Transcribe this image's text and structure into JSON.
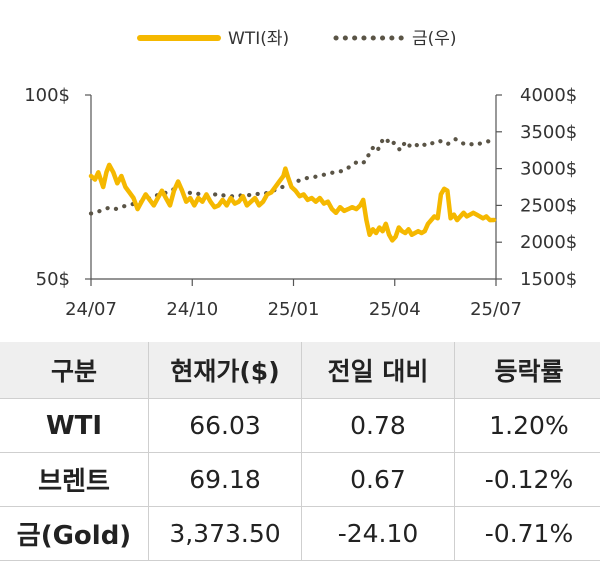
{
  "chart_data": {
    "type": "line",
    "legend_position": "top",
    "x_ticks": [
      "24/07",
      "24/10",
      "25/01",
      "25/04",
      "25/07"
    ],
    "x_range": [
      "2024-07",
      "2025-07"
    ],
    "y_left": {
      "ticks": [
        "100$",
        "50$"
      ],
      "range": [
        50,
        100
      ]
    },
    "y_right": {
      "ticks": [
        "4000$",
        "3500$",
        "3000$",
        "2500$",
        "2000$",
        "1500$"
      ],
      "range": [
        1500,
        4000
      ]
    },
    "series": [
      {
        "name": "WTI(좌)",
        "axis": "left",
        "style": "solid",
        "color": "#F5B800",
        "points": [
          [
            0.0,
            78.0
          ],
          [
            0.01,
            77.0
          ],
          [
            0.018,
            79.0
          ],
          [
            0.03,
            75.0
          ],
          [
            0.038,
            79.0
          ],
          [
            0.045,
            81.0
          ],
          [
            0.055,
            79.0
          ],
          [
            0.065,
            76.0
          ],
          [
            0.075,
            78.0
          ],
          [
            0.085,
            75.0
          ],
          [
            0.095,
            73.5
          ],
          [
            0.105,
            72.0
          ],
          [
            0.115,
            69.0
          ],
          [
            0.125,
            71.0
          ],
          [
            0.135,
            73.0
          ],
          [
            0.145,
            71.5
          ],
          [
            0.155,
            70.0
          ],
          [
            0.165,
            72.0
          ],
          [
            0.175,
            74.0
          ],
          [
            0.185,
            72.0
          ],
          [
            0.195,
            70.0
          ],
          [
            0.205,
            74.0
          ],
          [
            0.215,
            76.5
          ],
          [
            0.225,
            74.0
          ],
          [
            0.235,
            71.0
          ],
          [
            0.245,
            72.0
          ],
          [
            0.255,
            70.0
          ],
          [
            0.265,
            72.0
          ],
          [
            0.275,
            71.0
          ],
          [
            0.285,
            73.0
          ],
          [
            0.295,
            71.0
          ],
          [
            0.305,
            69.5
          ],
          [
            0.315,
            70.0
          ],
          [
            0.325,
            71.5
          ],
          [
            0.335,
            70.0
          ],
          [
            0.345,
            72.0
          ],
          [
            0.355,
            70.5
          ],
          [
            0.365,
            71.0
          ],
          [
            0.375,
            72.5
          ],
          [
            0.385,
            70.0
          ],
          [
            0.395,
            71.0
          ],
          [
            0.405,
            72.0
          ],
          [
            0.415,
            70.0
          ],
          [
            0.425,
            71.0
          ],
          [
            0.435,
            73.0
          ],
          [
            0.445,
            73.5
          ],
          [
            0.455,
            75.0
          ],
          [
            0.465,
            76.5
          ],
          [
            0.475,
            78.0
          ],
          [
            0.48,
            80.0
          ],
          [
            0.487,
            77.5
          ],
          [
            0.495,
            75.0
          ],
          [
            0.505,
            74.0
          ],
          [
            0.515,
            72.5
          ],
          [
            0.525,
            73.0
          ],
          [
            0.535,
            71.5
          ],
          [
            0.545,
            72.0
          ],
          [
            0.555,
            71.0
          ],
          [
            0.565,
            72.0
          ],
          [
            0.575,
            70.5
          ],
          [
            0.585,
            71.0
          ],
          [
            0.595,
            69.0
          ],
          [
            0.605,
            68.0
          ],
          [
            0.615,
            69.5
          ],
          [
            0.625,
            68.5
          ],
          [
            0.635,
            69.0
          ],
          [
            0.645,
            69.5
          ],
          [
            0.655,
            69.0
          ],
          [
            0.665,
            70.0
          ],
          [
            0.672,
            71.5
          ],
          [
            0.68,
            66.0
          ],
          [
            0.688,
            62.0
          ],
          [
            0.696,
            63.5
          ],
          [
            0.704,
            62.5
          ],
          [
            0.712,
            64.0
          ],
          [
            0.72,
            63.0
          ],
          [
            0.728,
            65.0
          ],
          [
            0.736,
            62.0
          ],
          [
            0.744,
            60.5
          ],
          [
            0.752,
            61.5
          ],
          [
            0.76,
            64.0
          ],
          [
            0.768,
            63.0
          ],
          [
            0.776,
            62.5
          ],
          [
            0.784,
            63.5
          ],
          [
            0.792,
            62.0
          ],
          [
            0.8,
            62.5
          ],
          [
            0.808,
            63.0
          ],
          [
            0.816,
            62.5
          ],
          [
            0.824,
            63.0
          ],
          [
            0.832,
            65.0
          ],
          [
            0.84,
            66.0
          ],
          [
            0.848,
            67.0
          ],
          [
            0.856,
            66.5
          ],
          [
            0.864,
            73.0
          ],
          [
            0.872,
            74.5
          ],
          [
            0.88,
            74.0
          ],
          [
            0.888,
            66.5
          ],
          [
            0.896,
            67.5
          ],
          [
            0.904,
            66.0
          ],
          [
            0.912,
            67.0
          ],
          [
            0.92,
            68.0
          ],
          [
            0.928,
            67.0
          ],
          [
            0.936,
            67.5
          ],
          [
            0.944,
            68.0
          ],
          [
            0.952,
            67.5
          ],
          [
            0.96,
            67.0
          ],
          [
            0.968,
            66.5
          ],
          [
            0.976,
            67.0
          ],
          [
            0.985,
            66.0
          ],
          [
            0.995,
            66.03
          ]
        ]
      },
      {
        "name": "금(우)",
        "axis": "right",
        "style": "dotted",
        "color": "#5A5446",
        "points": [
          [
            0.0,
            2390
          ],
          [
            0.015,
            2410
          ],
          [
            0.03,
            2440
          ],
          [
            0.045,
            2470
          ],
          [
            0.06,
            2450
          ],
          [
            0.075,
            2480
          ],
          [
            0.09,
            2500
          ],
          [
            0.105,
            2520
          ],
          [
            0.12,
            2540
          ],
          [
            0.135,
            2570
          ],
          [
            0.15,
            2620
          ],
          [
            0.165,
            2640
          ],
          [
            0.18,
            2660
          ],
          [
            0.195,
            2700
          ],
          [
            0.21,
            2730
          ],
          [
            0.225,
            2710
          ],
          [
            0.24,
            2680
          ],
          [
            0.255,
            2650
          ],
          [
            0.27,
            2660
          ],
          [
            0.285,
            2630
          ],
          [
            0.3,
            2640
          ],
          [
            0.315,
            2660
          ],
          [
            0.33,
            2630
          ],
          [
            0.345,
            2620
          ],
          [
            0.36,
            2640
          ],
          [
            0.375,
            2630
          ],
          [
            0.39,
            2640
          ],
          [
            0.405,
            2660
          ],
          [
            0.42,
            2650
          ],
          [
            0.435,
            2670
          ],
          [
            0.45,
            2700
          ],
          [
            0.465,
            2740
          ],
          [
            0.48,
            2760
          ],
          [
            0.495,
            2800
          ],
          [
            0.51,
            2830
          ],
          [
            0.525,
            2860
          ],
          [
            0.54,
            2880
          ],
          [
            0.555,
            2890
          ],
          [
            0.57,
            2910
          ],
          [
            0.585,
            2930
          ],
          [
            0.6,
            2950
          ],
          [
            0.615,
            2960
          ],
          [
            0.63,
            2990
          ],
          [
            0.645,
            3050
          ],
          [
            0.66,
            3100
          ],
          [
            0.672,
            3080
          ],
          [
            0.68,
            3110
          ],
          [
            0.69,
            3250
          ],
          [
            0.7,
            3300
          ],
          [
            0.708,
            3250
          ],
          [
            0.716,
            3350
          ],
          [
            0.724,
            3420
          ],
          [
            0.732,
            3380
          ],
          [
            0.74,
            3320
          ],
          [
            0.748,
            3350
          ],
          [
            0.756,
            3290
          ],
          [
            0.764,
            3250
          ],
          [
            0.772,
            3330
          ],
          [
            0.78,
            3370
          ],
          [
            0.788,
            3300
          ],
          [
            0.796,
            3290
          ],
          [
            0.804,
            3320
          ],
          [
            0.812,
            3300
          ],
          [
            0.82,
            3330
          ],
          [
            0.83,
            3310
          ],
          [
            0.84,
            3340
          ],
          [
            0.85,
            3360
          ],
          [
            0.86,
            3380
          ],
          [
            0.87,
            3350
          ],
          [
            0.88,
            3330
          ],
          [
            0.89,
            3370
          ],
          [
            0.9,
            3400
          ],
          [
            0.91,
            3360
          ],
          [
            0.92,
            3340
          ],
          [
            0.93,
            3350
          ],
          [
            0.94,
            3330
          ],
          [
            0.95,
            3350
          ],
          [
            0.96,
            3340
          ],
          [
            0.97,
            3360
          ],
          [
            0.98,
            3370
          ],
          [
            0.99,
            3380
          ],
          [
            1.0,
            3373.5
          ]
        ]
      }
    ]
  },
  "table": {
    "headers": [
      "구분",
      "현재가($)",
      "전일 대비",
      "등락률"
    ],
    "rows": [
      {
        "name": "WTI",
        "price": "66.03",
        "change": "0.78",
        "rate": "1.20%"
      },
      {
        "name": "브렌트",
        "price": "69.18",
        "change": "0.67",
        "rate": "-0.12%"
      },
      {
        "name": "금(Gold)",
        "price": "3,373.50",
        "change": "-24.10",
        "rate": "-0.71%"
      }
    ]
  }
}
